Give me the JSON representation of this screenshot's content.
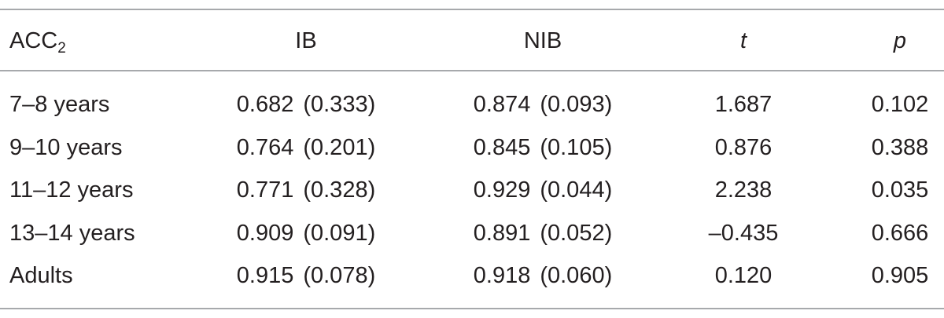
{
  "table": {
    "header": [
      {
        "text": "ACC",
        "sub": "2"
      },
      {
        "text": "IB"
      },
      {
        "text": "NIB"
      },
      {
        "text": "t"
      },
      {
        "text": "p"
      }
    ],
    "rows": [
      [
        "7–8 years",
        {
          "mean": "0.682",
          "sd": "(0.333)"
        },
        {
          "mean": "0.874",
          "sd": "(0.093)"
        },
        "1.687",
        "0.102"
      ],
      [
        "9–10 years",
        {
          "mean": "0.764",
          "sd": "(0.201)"
        },
        {
          "mean": "0.845",
          "sd": "(0.105)"
        },
        "0.876",
        "0.388"
      ],
      [
        "11–12 years",
        {
          "mean": "0.771",
          "sd": "(0.328)"
        },
        {
          "mean": "0.929",
          "sd": "(0.044)"
        },
        "2.238",
        "0.035"
      ],
      [
        "13–14 years",
        {
          "mean": "0.909",
          "sd": "(0.091)"
        },
        {
          "mean": "0.891",
          "sd": "(0.052)"
        },
        "–0.435",
        "0.666"
      ],
      [
        "Adults",
        {
          "mean": "0.915",
          "sd": "(0.078)"
        },
        {
          "mean": "0.918",
          "sd": "(0.060)"
        },
        "0.120",
        "0.905"
      ]
    ]
  }
}
